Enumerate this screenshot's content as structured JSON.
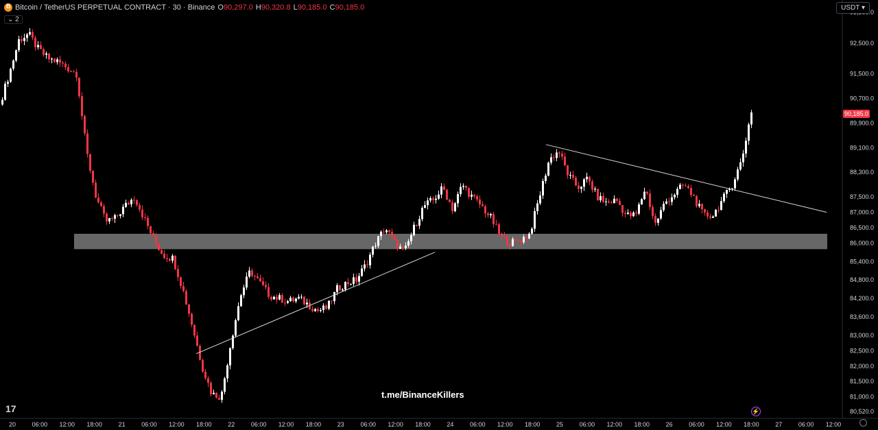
{
  "header": {
    "symbol": "Bitcoin / TetherUS PERPETUAL CONTRACT · 30 · Binance",
    "open_label": "O",
    "open": "90,297.0",
    "high_label": "H",
    "high": "90,320.8",
    "low_label": "L",
    "low": "90,185.0",
    "close_label": "C",
    "close": "90,185.0",
    "indicator_count": "2"
  },
  "currency": "USDT",
  "current_price": "90,185.0",
  "watermark": "t.me/BinanceKillers",
  "logo": "17",
  "colors": {
    "up": "#ffffff",
    "down": "#f23645",
    "zone": "#8a8a8a",
    "trendline": "#d9d9d9",
    "background": "#000000"
  },
  "chart_data": {
    "type": "candlestick",
    "timeframe": "30",
    "ylim": [
      80300,
      93900
    ],
    "y_ticks": [
      "93,500.0",
      "92,500.0",
      "91,500.0",
      "90,700.0",
      "89,900.0",
      "89,100.0",
      "88,300.0",
      "87,500.0",
      "87,000.0",
      "86,500.0",
      "86,000.0",
      "85,400.0",
      "84,800.0",
      "84,200.0",
      "83,600.0",
      "83,000.0",
      "82,500.0",
      "82,000.0",
      "81,500.0",
      "81,000.0",
      "80,520.0"
    ],
    "x_ticks": [
      "20",
      "06:00",
      "12:00",
      "18:00",
      "21",
      "06:00",
      "12:00",
      "18:00",
      "22",
      "06:00",
      "12:00",
      "18:00",
      "23",
      "06:00",
      "12:00",
      "18:00",
      "24",
      "06:00",
      "12:00",
      "18:00",
      "25",
      "06:00",
      "12:00",
      "18:00",
      "26",
      "06:00",
      "12:00",
      "18:00",
      "27",
      "06:00",
      "12:00"
    ],
    "price_path": [
      90500,
      91500,
      92600,
      92800,
      92300,
      92000,
      91900,
      91700,
      91500,
      89000,
      87500,
      86700,
      86800,
      87200,
      87500,
      86800,
      86100,
      85600,
      85500,
      84500,
      83300,
      82000,
      81100,
      81000,
      82800,
      84300,
      85100,
      84700,
      84300,
      84200,
      84100,
      84200,
      84000,
      83800,
      83900,
      84500,
      84700,
      84800,
      85300,
      86000,
      86500,
      86000,
      85700,
      86500,
      87200,
      87400,
      87800,
      87100,
      87900,
      87500,
      87200,
      86800,
      86200,
      86000,
      86100,
      86300,
      87500,
      88700,
      89000,
      88200,
      87800,
      88100,
      87500,
      87300,
      87400,
      86900,
      86900,
      87800,
      86600,
      87300,
      87600,
      87900,
      87500,
      86900,
      86900,
      87400,
      87900,
      88700,
      90300
    ],
    "support_zone": [
      85800,
      86300
    ],
    "trendlines": [
      {
        "label": "ascending",
        "from": [
          82400,
          "21 15:00"
        ],
        "to": [
          85700,
          "23 18:00"
        ]
      },
      {
        "label": "descending",
        "from": [
          89200,
          "24 19:00"
        ],
        "to": [
          87000,
          "27 06:00"
        ]
      }
    ]
  }
}
